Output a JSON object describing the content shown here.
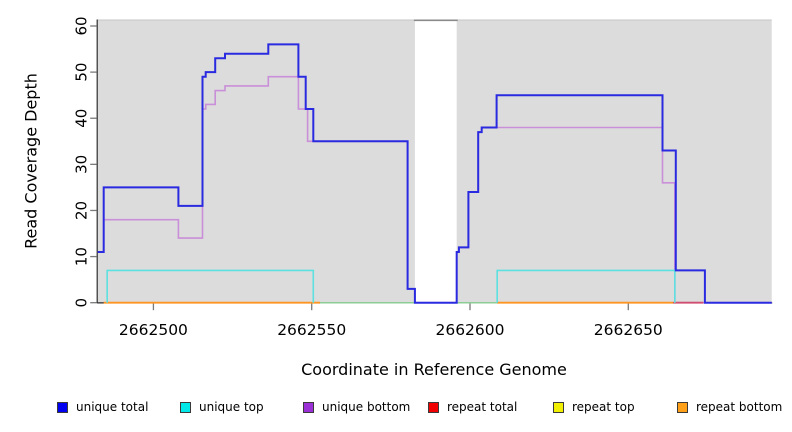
{
  "chart_data": {
    "type": "line",
    "variant": "step-coverage-plot",
    "title": "",
    "xlabel": "Coordinate in Reference Genome",
    "ylabel": "Read Coverage Depth",
    "x_domain": [
      2662482.4,
      2662695.3
    ],
    "ylim": [
      0,
      61.3
    ],
    "x_ticks": [
      2662500,
      2662550,
      2662600,
      2662650
    ],
    "y_ticks": [
      0,
      10,
      20,
      30,
      40,
      50,
      60
    ],
    "grid": false,
    "panel_bg": "#dcdcdc",
    "panel_top_border": "#c6c6c6",
    "axis_color": "#2b2b2b",
    "tick_color": "#7a7a7a",
    "gap_region": {
      "x0": 2662582.6,
      "x1": 2662595.8,
      "fill": "#ffffff",
      "cap_color": "#8a8a8a"
    },
    "series": [
      {
        "name": "zero-coverage-blend",
        "color": "#8ccd96",
        "width": 1.5,
        "paths": [
          [
            [
              2662552.6,
              0
            ],
            [
              2662608.6,
              0
            ]
          ]
        ]
      },
      {
        "name": "unique bottom",
        "color": "#c98fd8",
        "width": 1.6,
        "paths": [
          [
            [
              2662482.4,
              11
            ],
            [
              2662484.3,
              11
            ],
            [
              2662484.3,
              18
            ],
            [
              2662507.9,
              18
            ],
            [
              2662507.9,
              14
            ],
            [
              2662515.5,
              14
            ],
            [
              2662515.5,
              42
            ],
            [
              2662516.5,
              42
            ],
            [
              2662516.5,
              43
            ],
            [
              2662519.5,
              43
            ],
            [
              2662519.5,
              46
            ],
            [
              2662522.6,
              46
            ],
            [
              2662522.6,
              47
            ],
            [
              2662536.3,
              47
            ],
            [
              2662536.3,
              49
            ],
            [
              2662545.8,
              49
            ],
            [
              2662545.8,
              42
            ],
            [
              2662548.7,
              42
            ],
            [
              2662548.7,
              35
            ],
            [
              2662580.3,
              35
            ],
            [
              2662580.3,
              3
            ],
            [
              2662582.6,
              3
            ],
            [
              2662582.6,
              0
            ],
            [
              2662595.8,
              0
            ],
            [
              2662595.8,
              11
            ],
            [
              2662596.5,
              11
            ],
            [
              2662596.5,
              12
            ],
            [
              2662599.5,
              12
            ],
            [
              2662599.5,
              24
            ],
            [
              2662602.6,
              24
            ],
            [
              2662602.6,
              37
            ],
            [
              2662603.7,
              37
            ],
            [
              2662603.7,
              38
            ],
            [
              2662660.8,
              38
            ],
            [
              2662660.8,
              26
            ],
            [
              2662664.7,
              26
            ],
            [
              2662664.7,
              0
            ],
            [
              2662695.3,
              0
            ]
          ]
        ]
      },
      {
        "name": "repeat total",
        "color": "#d04f70",
        "width": 1.8,
        "paths": [
          [
            [
              2662664.2,
              0
            ],
            [
              2662673.7,
              0
            ]
          ]
        ]
      },
      {
        "name": "repeat top",
        "color": "#f0f000",
        "width": 1.5,
        "paths": []
      },
      {
        "name": "repeat bottom",
        "color": "#ff9420",
        "width": 1.8,
        "paths": [
          [
            [
              2662484.3,
              0
            ],
            [
              2662552.6,
              0
            ]
          ],
          [
            [
              2662608.6,
              0
            ],
            [
              2662664.2,
              0
            ]
          ]
        ]
      },
      {
        "name": "unique top",
        "color": "#5ce0e0",
        "width": 1.6,
        "paths": [
          [
            [
              2662485.4,
              0
            ],
            [
              2662485.4,
              7
            ],
            [
              2662550.5,
              7
            ],
            [
              2662550.5,
              0
            ]
          ],
          [
            [
              2662608.6,
              0
            ],
            [
              2662608.6,
              7
            ],
            [
              2662664.7,
              7
            ],
            [
              2662664.7,
              0
            ]
          ]
        ]
      },
      {
        "name": "unique total",
        "color": "#2a2ae0",
        "width": 2,
        "paths": [
          [
            [
              2662482.4,
              11
            ],
            [
              2662484.3,
              11
            ],
            [
              2662484.3,
              25
            ],
            [
              2662507.9,
              25
            ],
            [
              2662507.9,
              21
            ],
            [
              2662515.5,
              21
            ],
            [
              2662515.5,
              49
            ],
            [
              2662516.5,
              49
            ],
            [
              2662516.5,
              50
            ],
            [
              2662519.5,
              50
            ],
            [
              2662519.5,
              53
            ],
            [
              2662522.6,
              53
            ],
            [
              2662522.6,
              54
            ],
            [
              2662536.3,
              54
            ],
            [
              2662536.3,
              56
            ],
            [
              2662545.8,
              56
            ],
            [
              2662545.8,
              49
            ],
            [
              2662548.1,
              49
            ],
            [
              2662548.1,
              42
            ],
            [
              2662550.5,
              42
            ],
            [
              2662550.5,
              35
            ],
            [
              2662580.3,
              35
            ],
            [
              2662580.3,
              3
            ],
            [
              2662582.6,
              3
            ],
            [
              2662582.6,
              0
            ],
            [
              2662595.8,
              0
            ],
            [
              2662595.8,
              11
            ],
            [
              2662596.5,
              11
            ],
            [
              2662596.5,
              12
            ],
            [
              2662599.5,
              12
            ],
            [
              2662599.5,
              24
            ],
            [
              2662602.6,
              24
            ],
            [
              2662602.6,
              37
            ],
            [
              2662603.7,
              37
            ],
            [
              2662603.7,
              38
            ],
            [
              2662608.4,
              38
            ],
            [
              2662608.4,
              45
            ],
            [
              2662660.8,
              45
            ],
            [
              2662660.8,
              33
            ],
            [
              2662665,
              33
            ],
            [
              2662665,
              7
            ],
            [
              2662674.2,
              7
            ],
            [
              2662674.2,
              0
            ],
            [
              2662695.3,
              0
            ]
          ]
        ]
      }
    ],
    "legend": [
      {
        "label": "unique total",
        "color": "#0000f0"
      },
      {
        "label": "unique top",
        "color": "#00e8e8"
      },
      {
        "label": "unique bottom",
        "color": "#9a30d5"
      },
      {
        "label": "repeat total",
        "color": "#f00000"
      },
      {
        "label": "repeat top",
        "color": "#f0f000"
      },
      {
        "label": "repeat bottom",
        "color": "#ffa018"
      }
    ],
    "legend_positions": [
      57,
      180,
      303,
      428,
      553,
      677
    ]
  }
}
